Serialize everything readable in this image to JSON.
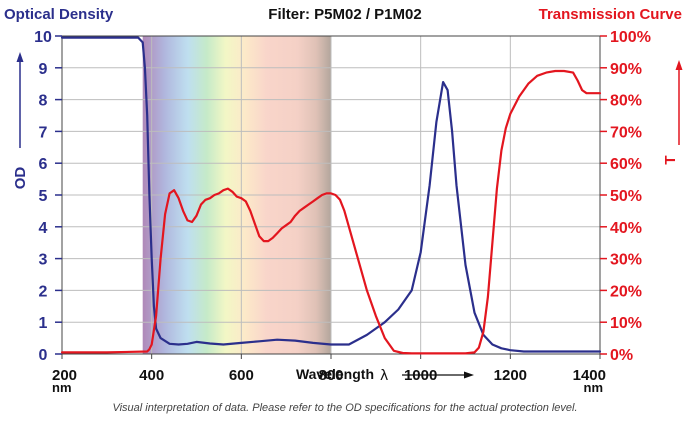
{
  "header": {
    "left_title": "Optical Density",
    "center_title": "Filter: P5M02 / P1M02",
    "right_title": "Transmission Curve"
  },
  "footnote": "Visual interpretation of data. Please refer to the OD specifications for the actual protection level.",
  "colors": {
    "od": "#2b2f8c",
    "transmission": "#e3161f"
  },
  "chart_data": {
    "type": "line",
    "xlabel": "Wavelength",
    "xlabel_symbol": "λ",
    "x_unit": "nm",
    "xlim": [
      200,
      1400
    ],
    "x_ticks": [
      "200",
      "400",
      "600",
      "800",
      "1000",
      "1200",
      "1400"
    ],
    "ylabel_left": "OD",
    "ylim_left": [
      0,
      10
    ],
    "y_ticks_left": [
      "0",
      "1",
      "2",
      "3",
      "4",
      "5",
      "6",
      "7",
      "8",
      "9",
      "10"
    ],
    "ylabel_right": "T",
    "ylim_right": [
      0,
      100
    ],
    "y_ticks_right": [
      "0%",
      "10%",
      "20%",
      "30%",
      "40%",
      "50%",
      "60%",
      "70%",
      "80%",
      "90%",
      "100%"
    ],
    "grid": true,
    "spectrum_band_nm": [
      380,
      800
    ],
    "series": [
      {
        "name": "OD",
        "axis": "left",
        "x": [
          200,
          300,
          370,
          380,
          385,
          390,
          395,
          400,
          405,
          410,
          420,
          440,
          460,
          480,
          500,
          530,
          560,
          600,
          640,
          680,
          720,
          760,
          800,
          840,
          880,
          920,
          950,
          980,
          1000,
          1020,
          1035,
          1050,
          1060,
          1070,
          1080,
          1100,
          1120,
          1140,
          1160,
          1180,
          1200,
          1230,
          1300,
          1400
        ],
        "values": [
          9.95,
          9.95,
          9.95,
          9.8,
          9.0,
          7.5,
          5.0,
          3.0,
          1.5,
          0.8,
          0.5,
          0.32,
          0.3,
          0.32,
          0.38,
          0.33,
          0.3,
          0.35,
          0.4,
          0.45,
          0.42,
          0.35,
          0.3,
          0.3,
          0.6,
          1.0,
          1.4,
          2.0,
          3.2,
          5.3,
          7.3,
          8.55,
          8.3,
          7.0,
          5.3,
          2.8,
          1.3,
          0.6,
          0.3,
          0.18,
          0.12,
          0.08,
          0.08,
          0.08
        ]
      },
      {
        "name": "Transmission",
        "axis": "right",
        "x": [
          200,
          300,
          390,
          395,
          400,
          410,
          420,
          430,
          440,
          450,
          460,
          470,
          480,
          490,
          500,
          510,
          520,
          530,
          540,
          550,
          560,
          570,
          580,
          590,
          600,
          610,
          620,
          630,
          640,
          650,
          660,
          670,
          680,
          690,
          700,
          710,
          720,
          730,
          740,
          750,
          760,
          770,
          780,
          790,
          800,
          810,
          820,
          830,
          840,
          860,
          880,
          900,
          920,
          940,
          960,
          980,
          1000,
          1050,
          1100,
          1120,
          1130,
          1140,
          1150,
          1160,
          1170,
          1180,
          1190,
          1200,
          1220,
          1240,
          1260,
          1280,
          1300,
          1320,
          1340,
          1350,
          1360,
          1370,
          1380,
          1400
        ],
        "values": [
          0.5,
          0.5,
          0.8,
          1.5,
          3.0,
          12.0,
          30.0,
          44.0,
          50.5,
          51.5,
          49.0,
          45.0,
          42.0,
          41.5,
          43.5,
          47.0,
          48.5,
          49.0,
          50.0,
          50.5,
          51.5,
          52.0,
          51.0,
          49.5,
          49.0,
          48.0,
          45.0,
          41.0,
          37.0,
          35.5,
          35.5,
          36.5,
          38.0,
          39.5,
          40.5,
          41.5,
          43.5,
          45.0,
          46.0,
          47.0,
          48.0,
          49.0,
          50.0,
          50.5,
          50.5,
          50.0,
          48.5,
          45.0,
          40.0,
          30.0,
          20.0,
          12.0,
          5.0,
          1.0,
          0.3,
          0.2,
          0.2,
          0.2,
          0.2,
          0.5,
          2.0,
          7.0,
          18.0,
          35.0,
          52.0,
          64.0,
          71.0,
          75.5,
          81.0,
          85.0,
          87.5,
          88.5,
          89.0,
          89.0,
          88.5,
          86.0,
          83.0,
          82.0,
          82.0,
          82.0
        ]
      }
    ]
  }
}
